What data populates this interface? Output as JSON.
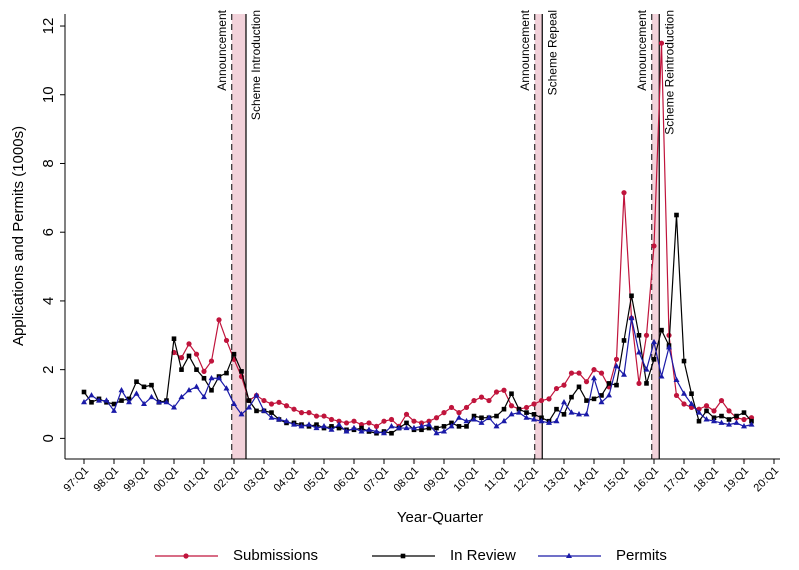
{
  "chart_data": {
    "type": "line",
    "x_label": "Year-Quarter",
    "y_label": "Applications and Permits (1000s)",
    "categories": [
      "97:Q1",
      null,
      null,
      null,
      "98:Q1",
      null,
      null,
      null,
      "99:Q1",
      null,
      null,
      null,
      "00:Q1",
      null,
      null,
      null,
      "01:Q1",
      null,
      null,
      null,
      "02:Q1",
      null,
      null,
      null,
      "03:Q1",
      null,
      null,
      null,
      "04:Q1",
      null,
      null,
      null,
      "05:Q1",
      null,
      null,
      null,
      "06:Q1",
      null,
      null,
      null,
      "07:Q1",
      null,
      null,
      null,
      "08:Q1",
      null,
      null,
      null,
      "09:Q1",
      null,
      null,
      null,
      "10:Q1",
      null,
      null,
      null,
      "11:Q1",
      null,
      null,
      null,
      "12:Q1",
      null,
      null,
      null,
      "13:Q1",
      null,
      null,
      null,
      "14:Q1",
      null,
      null,
      null,
      "15:Q1",
      null,
      null,
      null,
      "16:Q1",
      null,
      null,
      null,
      "17:Q1",
      null,
      null,
      null,
      "18:Q1",
      null,
      null,
      null,
      "19:Q1",
      null,
      null,
      null,
      "20:Q1"
    ],
    "ylim": [
      -0.6,
      12.35
    ],
    "yticks": [
      0,
      2,
      4,
      6,
      8,
      10,
      12
    ],
    "series": [
      {
        "name": "Submissions",
        "color": "#c0143c",
        "marker": "circle",
        "values": [
          null,
          null,
          null,
          null,
          null,
          null,
          null,
          null,
          null,
          null,
          null,
          null,
          2.5,
          2.35,
          2.75,
          2.45,
          1.95,
          2.25,
          3.45,
          2.85,
          2.3,
          1.8,
          1.1,
          1.25,
          1.1,
          1.0,
          1.05,
          0.95,
          0.85,
          0.75,
          0.75,
          0.65,
          0.65,
          0.55,
          0.5,
          0.45,
          0.5,
          0.4,
          0.45,
          0.35,
          0.5,
          0.55,
          0.35,
          0.7,
          0.5,
          0.45,
          0.5,
          0.6,
          0.75,
          0.9,
          0.75,
          0.9,
          1.1,
          1.2,
          1.1,
          1.35,
          1.4,
          0.95,
          0.85,
          0.9,
          1.0,
          1.1,
          1.15,
          1.45,
          1.55,
          1.9,
          1.9,
          1.65,
          2.0,
          1.9,
          1.5,
          2.3,
          7.15,
          3.5,
          1.6,
          3.0,
          5.6,
          11.5,
          3.0,
          1.25,
          1.0,
          0.9,
          0.85,
          0.95,
          0.8,
          1.1,
          0.8,
          0.6,
          0.55,
          0.6,
          null,
          null,
          null
        ]
      },
      {
        "name": "In Review",
        "color": "#000000",
        "marker": "square",
        "values": [
          1.35,
          1.05,
          1.15,
          1.05,
          1.0,
          1.1,
          1.15,
          1.65,
          1.5,
          1.55,
          1.05,
          1.1,
          2.9,
          2.0,
          2.4,
          2.0,
          1.75,
          1.4,
          1.8,
          1.9,
          2.45,
          1.95,
          1.1,
          0.8,
          0.8,
          0.75,
          0.55,
          0.45,
          0.45,
          0.4,
          0.35,
          0.4,
          0.3,
          0.35,
          0.3,
          0.25,
          0.25,
          0.3,
          0.2,
          0.15,
          0.2,
          0.15,
          0.3,
          0.45,
          0.25,
          0.25,
          0.3,
          0.3,
          0.35,
          0.45,
          0.35,
          0.35,
          0.65,
          0.6,
          0.6,
          0.65,
          0.85,
          1.3,
          0.85,
          0.75,
          0.7,
          0.6,
          0.5,
          0.85,
          0.7,
          1.2,
          1.5,
          1.1,
          1.15,
          1.25,
          1.6,
          1.55,
          2.85,
          4.15,
          3.0,
          1.6,
          2.3,
          3.15,
          2.7,
          6.5,
          2.25,
          1.3,
          0.5,
          0.8,
          0.6,
          0.65,
          0.55,
          0.65,
          0.75,
          0.5,
          null,
          null,
          null
        ]
      },
      {
        "name": "Permits",
        "color": "#1a1aa8",
        "marker": "triangle",
        "values": [
          1.05,
          1.25,
          1.1,
          1.1,
          0.8,
          1.4,
          1.05,
          1.3,
          1.0,
          1.2,
          1.05,
          1.05,
          0.9,
          1.2,
          1.4,
          1.5,
          1.2,
          1.75,
          1.75,
          1.45,
          1.0,
          0.7,
          0.9,
          1.25,
          0.8,
          0.6,
          0.55,
          0.5,
          0.4,
          0.35,
          0.4,
          0.3,
          0.35,
          0.25,
          0.4,
          0.2,
          0.3,
          0.2,
          0.25,
          0.2,
          0.15,
          0.35,
          0.3,
          0.3,
          0.3,
          0.35,
          0.4,
          0.15,
          0.2,
          0.35,
          0.6,
          0.5,
          0.55,
          0.45,
          0.6,
          0.35,
          0.5,
          0.7,
          0.75,
          0.6,
          0.55,
          0.5,
          0.45,
          0.5,
          1.05,
          0.75,
          0.7,
          0.7,
          1.75,
          1.05,
          1.25,
          2.1,
          1.85,
          3.5,
          2.5,
          2.0,
          2.8,
          1.8,
          2.65,
          1.7,
          1.3,
          1.0,
          0.75,
          0.55,
          0.5,
          0.45,
          0.4,
          0.45,
          0.35,
          0.4,
          null,
          null,
          null
        ]
      }
    ],
    "events": [
      {
        "announcement": "Announcement",
        "announcement_x": 19.7,
        "change": "Scheme Introduction",
        "change_x": 21.6
      },
      {
        "announcement": "Announcement",
        "announcement_x": 60.1,
        "change": "Scheme Repeal",
        "change_x": 61.1
      },
      {
        "announcement": "Announcement",
        "announcement_x": 75.7,
        "change": "Scheme Reintroduction",
        "change_x": 76.7
      }
    ],
    "event_band_color": "#f2d2da"
  }
}
